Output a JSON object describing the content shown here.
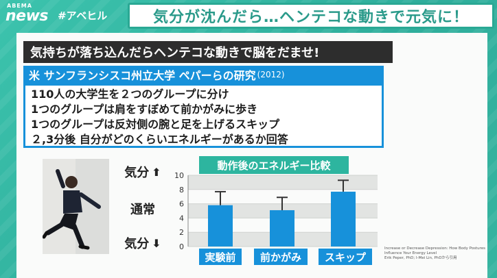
{
  "header": {
    "logo_small": "ABEMA",
    "logo_main": "news",
    "hashtag": "#アベヒル",
    "headline": "気分が沈んだら…ヘンテコな動きで元気に！"
  },
  "content": {
    "banner": "気持ちが落ち込んだらヘンテコな動きで脳をだませ!",
    "study": {
      "title": "米 サンフランシスコ州立大学 ペパーらの研究",
      "year": "(2012)"
    },
    "lines": [
      "110人の大学生を２つのグループに分け",
      "1つのグループは肩をすぼめて前かがみに歩き",
      "1つのグループは反対側の腕と足を上げるスキップ",
      "２,3分後 自分がどのくらいエネルギーがあるか回答"
    ],
    "mood_labels": {
      "up": "気分",
      "normal": "通常",
      "down": "気分"
    },
    "icons": {
      "up": "arrow-up-icon",
      "down": "arrow-down-icon"
    }
  },
  "chart_data": {
    "type": "bar",
    "title": "動作後のエネルギー比較",
    "categories": [
      "実験前",
      "前かがみ",
      "スキップ"
    ],
    "values": [
      5.8,
      5.1,
      7.7
    ],
    "error_upper": [
      7.7,
      6.9,
      9.3
    ],
    "yticks": [
      0,
      2,
      4,
      6,
      8,
      10
    ],
    "ylim": [
      0,
      10
    ],
    "grid": true,
    "colors": {
      "bar": "#1791da",
      "error": "#333333",
      "grid_band": "#e2e4e2"
    }
  },
  "credit": [
    "Increase or Decrease Depression: How Body Postures",
    "Influence Your Energy Level",
    "Erik Peper, PhD; I-Mei Lin, PhDから引用"
  ]
}
